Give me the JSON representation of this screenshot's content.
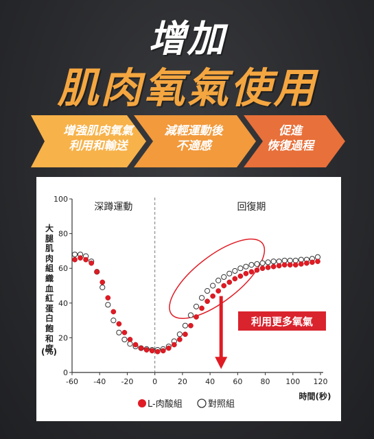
{
  "headline": {
    "line1": "增加",
    "line2": "肌肉氧氣使用"
  },
  "steps": [
    {
      "line1": "增強肌肉氧氣",
      "line2": "利用和輸送"
    },
    {
      "line1": "減輕運動後",
      "line2": "不適感"
    },
    {
      "line1": "促進",
      "line2": "恢復過程"
    }
  ],
  "colors": {
    "accent": "#f4a640",
    "step1": "#f7b24a",
    "step2": "#f29a3c",
    "step3": "#e8703a",
    "series_red": "#e01b24",
    "callout_red": "#d9232d"
  },
  "chart_data": {
    "type": "scatter",
    "ylabel": "大腿肌肉組織血紅蛋白飽和度",
    "ylabel_unit": "(%)",
    "xlabel": "時間(秒)",
    "xlim": [
      -60,
      120
    ],
    "ylim": [
      0,
      100
    ],
    "xticks": [
      "-60",
      "-40",
      "-20",
      "0",
      "20",
      "40",
      "60",
      "80",
      "100",
      "120"
    ],
    "yticks": [
      "0",
      "20",
      "40",
      "60",
      "80",
      "100"
    ],
    "phases": [
      "深蹲運動",
      "回復期"
    ],
    "annotation": "利用更多氧氣",
    "series": [
      {
        "name": "L-肉酸組",
        "marker": "filled",
        "x": [
          -58,
          -54,
          -50,
          -46,
          -42,
          -38,
          -34,
          -30,
          -26,
          -22,
          -18,
          -14,
          -10,
          -6,
          -2,
          2,
          6,
          10,
          14,
          18,
          22,
          26,
          30,
          34,
          38,
          42,
          46,
          50,
          54,
          58,
          62,
          66,
          70,
          74,
          78,
          82,
          86,
          90,
          94,
          98,
          102,
          106,
          110,
          114,
          118
        ],
        "y": [
          65,
          66,
          65,
          63,
          58,
          52,
          43,
          35,
          28,
          23,
          19,
          16,
          14,
          13,
          12.5,
          12,
          12.5,
          14,
          16,
          19,
          22,
          27,
          32,
          37,
          41,
          44,
          47,
          50,
          52,
          54,
          55.5,
          57,
          58,
          59,
          60,
          60.5,
          61,
          61.5,
          62,
          62,
          62,
          62.5,
          63,
          63.5,
          64
        ]
      },
      {
        "name": "對照組",
        "marker": "open",
        "x": [
          -58,
          -54,
          -50,
          -46,
          -42,
          -38,
          -34,
          -30,
          -26,
          -22,
          -18,
          -14,
          -10,
          -6,
          -2,
          2,
          6,
          10,
          14,
          18,
          22,
          26,
          30,
          34,
          38,
          42,
          46,
          50,
          54,
          58,
          62,
          66,
          70,
          74,
          78,
          82,
          86,
          90,
          94,
          98,
          102,
          106,
          110,
          114,
          118
        ],
        "y": [
          68,
          68,
          67,
          64,
          58,
          49,
          39,
          30,
          23,
          19,
          16.5,
          15,
          14,
          13.5,
          13,
          13,
          13.5,
          15,
          18,
          22,
          27,
          33,
          38,
          43,
          47,
          50,
          53,
          55,
          57,
          58.5,
          60,
          61,
          62,
          62.5,
          63,
          63.5,
          64,
          64,
          64.5,
          64.5,
          64.5,
          65,
          65,
          65.5,
          66.5
        ]
      }
    ],
    "legend_position": "bottom-center"
  }
}
